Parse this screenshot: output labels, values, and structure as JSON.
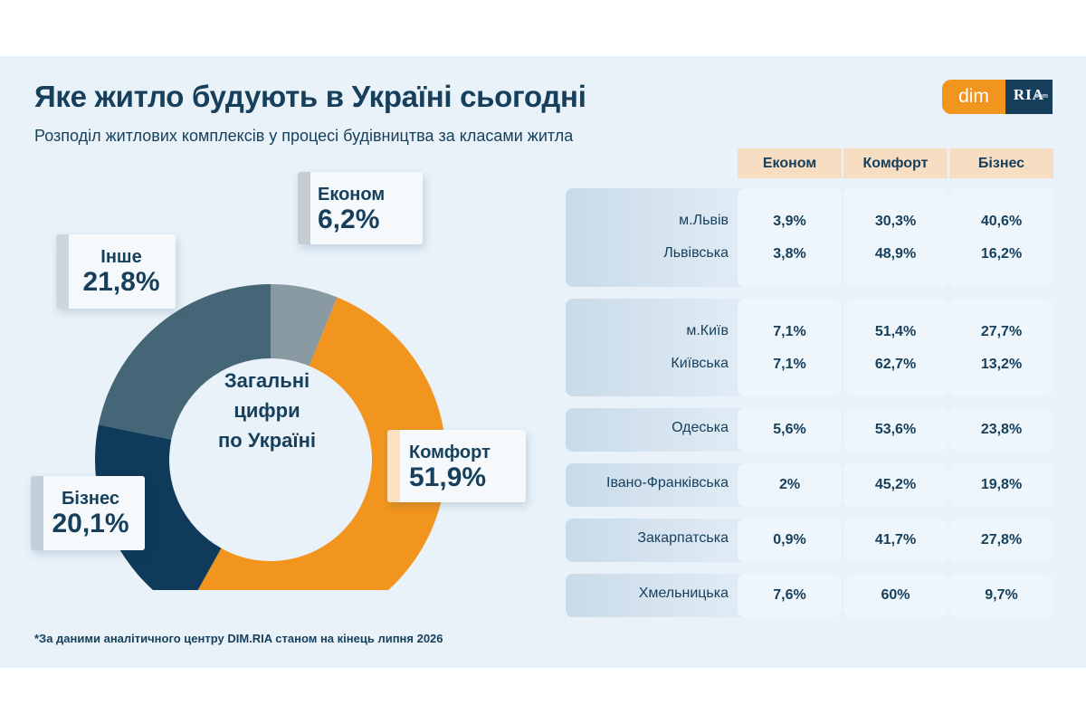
{
  "header": {
    "title": "Яке житло будують в Україні сьогодні",
    "subtitle": "Розподіл житлових комплексів у процесі будівництва за класами житла"
  },
  "logo": {
    "part1": "dim",
    "part2": "RIA",
    "part3": ".com"
  },
  "colors": {
    "Економ": "#8a9aa3",
    "Комфорт": "#f2951e",
    "Бізнес": "#0f3a59",
    "Інше": "#456676",
    "navy_text": "#163f5c",
    "header_bg": "#f7dec3",
    "card_bg": "#e9f2f9"
  },
  "chart_data": [
    {
      "type": "pie",
      "donut": true,
      "center_label": [
        "Загальні",
        "цифри",
        "по Україні"
      ],
      "slices": [
        {
          "label": "Економ",
          "value": 6.2,
          "display": "6,2%"
        },
        {
          "label": "Комфорт",
          "value": 51.9,
          "display": "51,9%"
        },
        {
          "label": "Бізнес",
          "value": 20.1,
          "display": "20,1%"
        },
        {
          "label": "Інше",
          "value": 21.8,
          "display": "21,8%"
        }
      ]
    },
    {
      "type": "table",
      "columns": [
        "Економ",
        "Комфорт",
        "Бізнес"
      ],
      "groups": [
        {
          "rows": [
            {
              "region": "м.Львів",
              "values": [
                "3,9%",
                "30,3%",
                "40,6%"
              ]
            },
            {
              "region": "Львівська",
              "values": [
                "3,8%",
                "48,9%",
                "16,2%"
              ]
            }
          ]
        },
        {
          "rows": [
            {
              "region": "м.Київ",
              "values": [
                "7,1%",
                "51,4%",
                "27,7%"
              ]
            },
            {
              "region": "Київська",
              "values": [
                "7,1%",
                "62,7%",
                "13,2%"
              ]
            }
          ]
        },
        {
          "rows": [
            {
              "region": "Одеська",
              "values": [
                "5,6%",
                "53,6%",
                "23,8%"
              ]
            }
          ]
        },
        {
          "rows": [
            {
              "region": "Івано-Франківська",
              "values": [
                "2%",
                "45,2%",
                "19,8%"
              ]
            }
          ]
        },
        {
          "rows": [
            {
              "region": "Закарпатська",
              "values": [
                "0,9%",
                "41,7%",
                "27,8%"
              ]
            }
          ]
        },
        {
          "rows": [
            {
              "region": "Хмельницька",
              "values": [
                "7,6%",
                "60%",
                "9,7%"
              ]
            }
          ]
        }
      ]
    }
  ],
  "footnote": "*За даними аналітичного центру DIM.RIA станом на кінець липня 2026"
}
